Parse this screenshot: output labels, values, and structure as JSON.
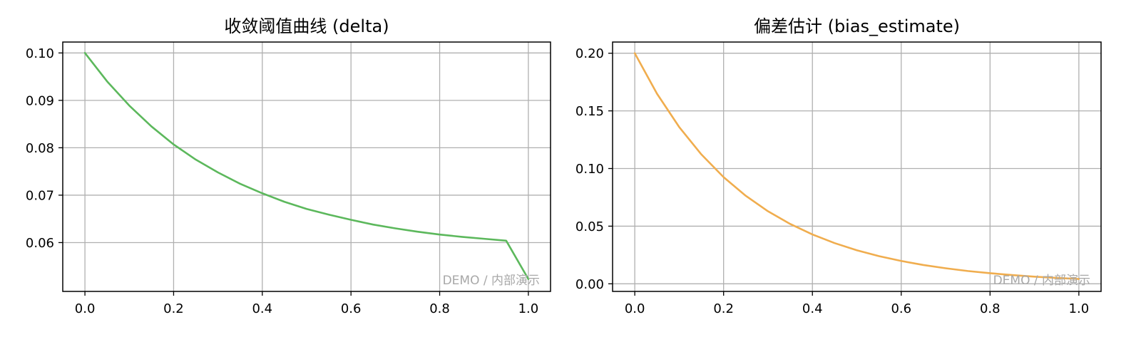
{
  "chart_data": [
    {
      "type": "line",
      "title": "收敛阈值曲线 (delta)",
      "xlabel": "",
      "ylabel": "",
      "xlim": [
        -0.05,
        1.05
      ],
      "ylim": [
        0.0497,
        0.1023
      ],
      "x_ticks": [
        0.0,
        0.2,
        0.4,
        0.6,
        0.8,
        1.0
      ],
      "x_tick_labels": [
        "0.0",
        "0.2",
        "0.4",
        "0.6",
        "0.8",
        "1.0"
      ],
      "y_ticks": [
        0.06,
        0.07,
        0.08,
        0.09,
        0.1
      ],
      "y_tick_labels": [
        "0.06",
        "0.07",
        "0.08",
        "0.09",
        "0.10"
      ],
      "grid": true,
      "watermark": "DEMO / 内部演示",
      "series": [
        {
          "color": "#5cb85c",
          "x": [
            0.0,
            0.05,
            0.1,
            0.15,
            0.2,
            0.25,
            0.3,
            0.35,
            0.4,
            0.45,
            0.5,
            0.55,
            0.6,
            0.65,
            0.7,
            0.75,
            0.8,
            0.85,
            0.9,
            0.95,
            1.0
          ],
          "y": [
            0.1,
            0.094,
            0.0889,
            0.0845,
            0.0807,
            0.0775,
            0.0748,
            0.0724,
            0.0704,
            0.0686,
            0.0671,
            0.0659,
            0.0648,
            0.0638,
            0.063,
            0.0623,
            0.0617,
            0.0612,
            0.0608,
            0.0604,
            0.0523
          ]
        }
      ]
    },
    {
      "type": "line",
      "title": "偏差估计 (bias_estimate)",
      "xlabel": "",
      "ylabel": "",
      "xlim": [
        -0.05,
        1.05
      ],
      "ylim": [
        -0.0066,
        0.2097
      ],
      "x_ticks": [
        0.0,
        0.2,
        0.4,
        0.6,
        0.8,
        1.0
      ],
      "x_tick_labels": [
        "0.0",
        "0.2",
        "0.4",
        "0.6",
        "0.8",
        "1.0"
      ],
      "y_ticks": [
        0.0,
        0.05,
        0.1,
        0.15,
        0.2
      ],
      "y_tick_labels": [
        "0.00",
        "0.05",
        "0.10",
        "0.15",
        "0.20"
      ],
      "grid": true,
      "watermark": "DEMO / 内部演示",
      "series": [
        {
          "color": "#f0ad4e",
          "x": [
            0.0,
            0.05,
            0.1,
            0.15,
            0.2,
            0.25,
            0.3,
            0.35,
            0.4,
            0.45,
            0.5,
            0.55,
            0.6,
            0.65,
            0.7,
            0.75,
            0.8,
            0.85,
            0.9,
            0.95,
            1.0
          ],
          "y": [
            0.2,
            0.1649,
            0.136,
            0.1122,
            0.0925,
            0.0763,
            0.0629,
            0.0519,
            0.0428,
            0.0353,
            0.0291,
            0.024,
            0.0198,
            0.0163,
            0.0135,
            0.0111,
            0.0092,
            0.0076,
            0.0062,
            0.0051,
            0.0042
          ]
        }
      ]
    }
  ]
}
